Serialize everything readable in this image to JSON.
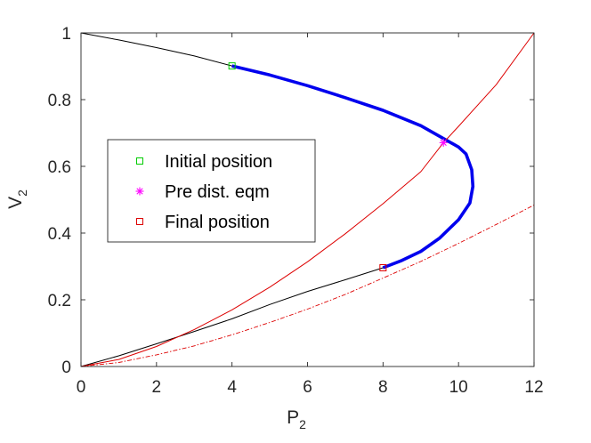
{
  "chart_data": {
    "type": "line",
    "xlabel": "P",
    "xlabel_sub": "2",
    "ylabel": "V",
    "ylabel_sub": "2",
    "xlim": [
      0,
      12
    ],
    "ylim": [
      0,
      1
    ],
    "xticks": [
      0,
      2,
      4,
      6,
      8,
      10,
      12
    ],
    "yticks": [
      0,
      0.2,
      0.4,
      0.6,
      0.8,
      1
    ],
    "xtick_labels": [
      "0",
      "2",
      "4",
      "6",
      "8",
      "10",
      "12"
    ],
    "ytick_labels": [
      "0",
      "0.2",
      "0.4",
      "0.6",
      "0.8",
      "1"
    ],
    "grid": false,
    "legend_position": "center-left",
    "series": [
      {
        "style": "solid",
        "color": "#000000",
        "points": [
          [
            0,
            1
          ],
          [
            1,
            0.979
          ],
          [
            2,
            0.956
          ],
          [
            3,
            0.931
          ],
          [
            4,
            0.901
          ],
          [
            5,
            0.874
          ],
          [
            6,
            0.842
          ],
          [
            7,
            0.806
          ],
          [
            8,
            0.768
          ],
          [
            9,
            0.722
          ],
          [
            10,
            0.658
          ],
          [
            10.2,
            0.637
          ],
          [
            10.35,
            0.59
          ],
          [
            10.38,
            0.54
          ],
          [
            10.3,
            0.49
          ],
          [
            10.0,
            0.44
          ],
          [
            9.5,
            0.385
          ],
          [
            9.0,
            0.345
          ],
          [
            8.5,
            0.318
          ],
          [
            8.0,
            0.296
          ],
          [
            7.0,
            0.26
          ],
          [
            6.0,
            0.225
          ],
          [
            5.0,
            0.186
          ],
          [
            4.0,
            0.143
          ],
          [
            3.0,
            0.105
          ],
          [
            2.0,
            0.068
          ],
          [
            1.0,
            0.032
          ],
          [
            0,
            0
          ]
        ]
      },
      {
        "style": "thick",
        "color": "#0000ee",
        "points": [
          [
            4,
            0.901
          ],
          [
            5,
            0.874
          ],
          [
            6,
            0.842
          ],
          [
            7,
            0.806
          ],
          [
            8,
            0.768
          ],
          [
            9,
            0.722
          ],
          [
            10,
            0.658
          ],
          [
            10.2,
            0.637
          ],
          [
            10.35,
            0.59
          ],
          [
            10.38,
            0.54
          ],
          [
            10.3,
            0.49
          ],
          [
            10.0,
            0.44
          ],
          [
            9.5,
            0.385
          ],
          [
            9.0,
            0.345
          ],
          [
            8.5,
            0.318
          ],
          [
            8.0,
            0.296
          ]
        ]
      },
      {
        "style": "solid",
        "color": "#dd0000",
        "points": [
          [
            0,
            0
          ],
          [
            1,
            0.021
          ],
          [
            2,
            0.06
          ],
          [
            3,
            0.111
          ],
          [
            4,
            0.17
          ],
          [
            5,
            0.238
          ],
          [
            6,
            0.314
          ],
          [
            7,
            0.398
          ],
          [
            8,
            0.488
          ],
          [
            9,
            0.584
          ],
          [
            9.6,
            0.671
          ],
          [
            10,
            0.72
          ],
          [
            11,
            0.845
          ],
          [
            12,
            1.0
          ]
        ]
      },
      {
        "style": "dashdot",
        "color": "#dd0000",
        "points": [
          [
            0,
            0
          ],
          [
            1,
            0.012
          ],
          [
            2,
            0.035
          ],
          [
            3,
            0.062
          ],
          [
            4,
            0.095
          ],
          [
            5,
            0.132
          ],
          [
            6,
            0.172
          ],
          [
            7,
            0.216
          ],
          [
            8,
            0.265
          ],
          [
            9,
            0.315
          ],
          [
            10,
            0.369
          ],
          [
            11,
            0.426
          ],
          [
            12,
            0.484
          ]
        ]
      }
    ],
    "markers": [
      {
        "name": "Initial position",
        "symbol": "square",
        "color": "#00cc00",
        "x": 4,
        "y": 0.901
      },
      {
        "name": "Pre dist. eqm",
        "symbol": "asterisk",
        "color": "#ff00ff",
        "x": 9.6,
        "y": 0.671
      },
      {
        "name": "Final position",
        "symbol": "square",
        "color": "#dd0000",
        "x": 8.0,
        "y": 0.296
      }
    ],
    "legend": [
      {
        "label": "Initial position",
        "symbol": "square",
        "color": "#00cc00"
      },
      {
        "label": "Pre dist. eqm",
        "symbol": "asterisk",
        "color": "#ff00ff"
      },
      {
        "label": "Final position",
        "symbol": "square",
        "color": "#dd0000"
      }
    ]
  }
}
